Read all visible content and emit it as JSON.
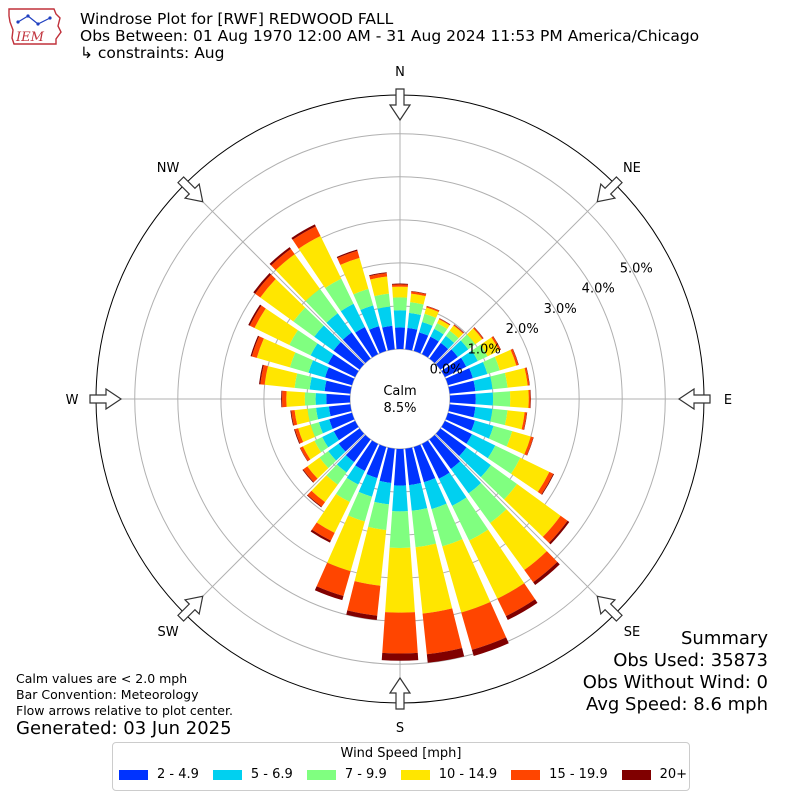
{
  "header": {
    "title": "Windrose Plot for [RWF] REDWOOD FALL",
    "subtitle": "Obs Between: 01 Aug 1970 12:00 AM - 31 Aug 2024 11:53 PM America/Chicago",
    "constraints": "↳ constraints: Aug",
    "logo_text": "IEM"
  },
  "summary": {
    "title": "Summary",
    "obs_used": "Obs Used: 35873",
    "obs_without_wind": "Obs Without Wind: 0",
    "avg_speed": "Avg Speed: 8.6 mph"
  },
  "notes": {
    "calm_note": "Calm values are < 2.0 mph",
    "bar_convention": "Bar Convention: Meteorology",
    "flow_arrows": "Flow arrows relative to plot center.",
    "generated": "Generated: 03 Jun 2025"
  },
  "legend": {
    "title": "Wind Speed [mph]",
    "items": [
      {
        "label": "2 - 4.9",
        "color": "#0033ff"
      },
      {
        "label": "5 - 6.9",
        "color": "#00d0f0"
      },
      {
        "label": "7 - 9.9",
        "color": "#80ff80"
      },
      {
        "label": "10 - 14.9",
        "color": "#ffe600"
      },
      {
        "label": "15 - 19.9",
        "color": "#ff4500"
      },
      {
        "label": "20+",
        "color": "#800000"
      }
    ]
  },
  "chart_data": {
    "type": "windrose",
    "calm_label": "Calm",
    "calm_value": "8.5%",
    "radial_tick_labels": [
      "0.0%",
      "1.0%",
      "2.0%",
      "3.0%",
      "4.0%",
      "5.0%"
    ],
    "radial_ticks": [
      0,
      1,
      2,
      3,
      4,
      5
    ],
    "radial_max": 5.9,
    "direction_labels": [
      "N",
      "NE",
      "E",
      "SE",
      "S",
      "SW",
      "W",
      "NW"
    ],
    "speed_bins": [
      "2 - 4.9",
      "5 - 6.9",
      "7 - 9.9",
      "10 - 14.9",
      "15 - 19.9",
      "20+"
    ],
    "bin_colors": [
      "#0033ff",
      "#00d0f0",
      "#80ff80",
      "#ffe600",
      "#ff4500",
      "#800000"
    ],
    "directions_deg": [
      0,
      10,
      20,
      30,
      40,
      50,
      60,
      70,
      80,
      90,
      100,
      110,
      120,
      130,
      140,
      150,
      160,
      170,
      180,
      190,
      200,
      210,
      220,
      230,
      240,
      250,
      260,
      270,
      280,
      290,
      300,
      310,
      320,
      330,
      340,
      350
    ],
    "cumulative_percent": [
      [
        0.5,
        0.9,
        1.2,
        1.45,
        1.5,
        1.52
      ],
      [
        0.5,
        0.85,
        1.1,
        1.3,
        1.35,
        1.36
      ],
      [
        0.45,
        0.7,
        0.9,
        1.05,
        1.08,
        1.09
      ],
      [
        0.45,
        0.65,
        0.8,
        0.9,
        0.92,
        0.93
      ],
      [
        0.45,
        0.65,
        0.8,
        0.95,
        0.97,
        0.98
      ],
      [
        0.5,
        0.8,
        1.0,
        1.2,
        1.23,
        1.24
      ],
      [
        0.55,
        0.85,
        1.1,
        1.4,
        1.44,
        1.45
      ],
      [
        0.6,
        0.95,
        1.25,
        1.65,
        1.7,
        1.71
      ],
      [
        0.6,
        1.0,
        1.35,
        1.82,
        1.86,
        1.87
      ],
      [
        0.6,
        1.0,
        1.4,
        1.83,
        1.87,
        1.88
      ],
      [
        0.6,
        1.0,
        1.35,
        1.75,
        1.8,
        1.81
      ],
      [
        0.65,
        1.1,
        1.55,
        2.0,
        2.06,
        2.07
      ],
      [
        0.7,
        1.3,
        1.95,
        2.7,
        2.8,
        2.82
      ],
      [
        0.75,
        1.45,
        2.2,
        3.45,
        3.65,
        3.7
      ],
      [
        0.85,
        1.55,
        2.4,
        3.75,
        4.1,
        4.18
      ],
      [
        0.9,
        1.6,
        2.5,
        4.0,
        4.45,
        4.55
      ],
      [
        0.85,
        1.5,
        2.4,
        4.0,
        4.9,
        5.05
      ],
      [
        0.85,
        1.45,
        2.3,
        3.85,
        4.8,
        5.0
      ],
      [
        0.85,
        1.45,
        2.3,
        3.8,
        4.75,
        4.92
      ],
      [
        0.8,
        1.3,
        1.9,
        3.2,
        3.9,
        4.0
      ],
      [
        0.75,
        1.2,
        1.8,
        3.0,
        3.6,
        3.7
      ],
      [
        0.7,
        1.05,
        1.5,
        2.3,
        2.5,
        2.55
      ],
      [
        0.65,
        0.95,
        1.3,
        1.8,
        1.93,
        1.95
      ],
      [
        0.6,
        0.9,
        1.15,
        1.5,
        1.62,
        1.64
      ],
      [
        0.55,
        0.85,
        1.05,
        1.35,
        1.42,
        1.43
      ],
      [
        0.55,
        0.8,
        1.0,
        1.3,
        1.38,
        1.4
      ],
      [
        0.5,
        0.8,
        1.0,
        1.3,
        1.38,
        1.4
      ],
      [
        0.55,
        0.8,
        1.05,
        1.48,
        1.58,
        1.6
      ],
      [
        0.6,
        0.95,
        1.3,
        2.0,
        2.1,
        2.13
      ],
      [
        0.65,
        1.05,
        1.5,
        2.3,
        2.42,
        2.45
      ],
      [
        0.7,
        1.15,
        1.7,
        2.6,
        2.72,
        2.76
      ],
      [
        0.75,
        1.3,
        1.9,
        2.85,
        3.0,
        3.05
      ],
      [
        0.75,
        1.3,
        2.0,
        3.0,
        3.15,
        3.2
      ],
      [
        0.7,
        1.3,
        1.95,
        3.05,
        3.3,
        3.35
      ],
      [
        0.6,
        1.1,
        1.5,
        2.25,
        2.42,
        2.45
      ],
      [
        0.55,
        1.0,
        1.3,
        1.7,
        1.78,
        1.8
      ]
    ]
  }
}
